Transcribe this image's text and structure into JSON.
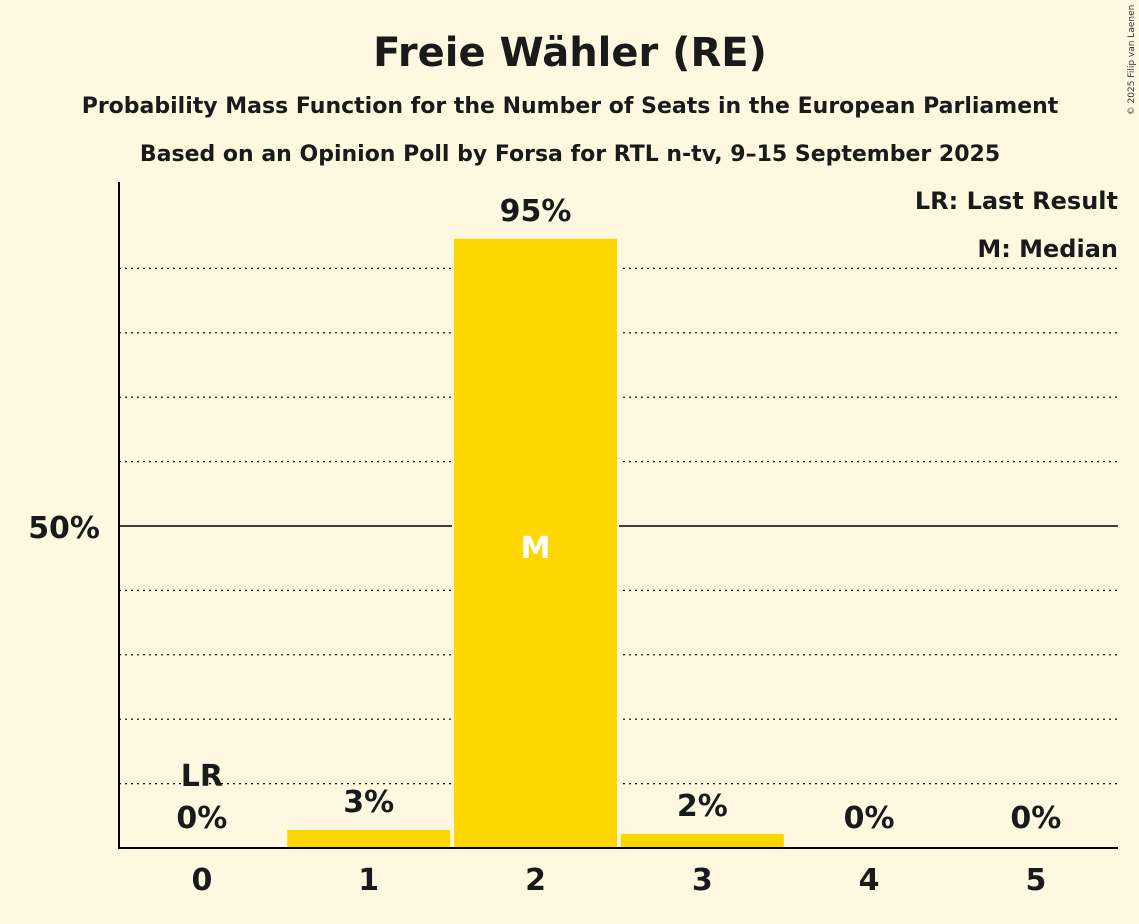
{
  "chart_data": {
    "type": "bar",
    "title": "Freie Wähler (RE)",
    "subtitle": "Probability Mass Function for the Number of Seats in the European Parliament",
    "subtitle2": "Based on an Opinion Poll by Forsa for RTL n-tv, 9–15 September 2025",
    "categories": [
      "0",
      "1",
      "2",
      "3",
      "4",
      "5"
    ],
    "values": [
      0,
      2.8,
      94.6,
      2.2,
      0,
      0
    ],
    "value_labels": [
      "0%",
      "3%",
      "95%",
      "2%",
      "0%",
      "0%"
    ],
    "ylim": [
      0,
      100
    ],
    "y_tick_label": "50%",
    "y_tick_value": 50,
    "grid": "dotted every 10%",
    "last_result_index": 0,
    "last_result_marker": "LR",
    "median_index": 2,
    "median_marker": "M",
    "legend": [
      "LR: Last Result",
      "M: Median"
    ],
    "legend_placement": "top-right",
    "bar_color": "#ffd700",
    "copyright": "© 2025 Filip van Laenen"
  }
}
